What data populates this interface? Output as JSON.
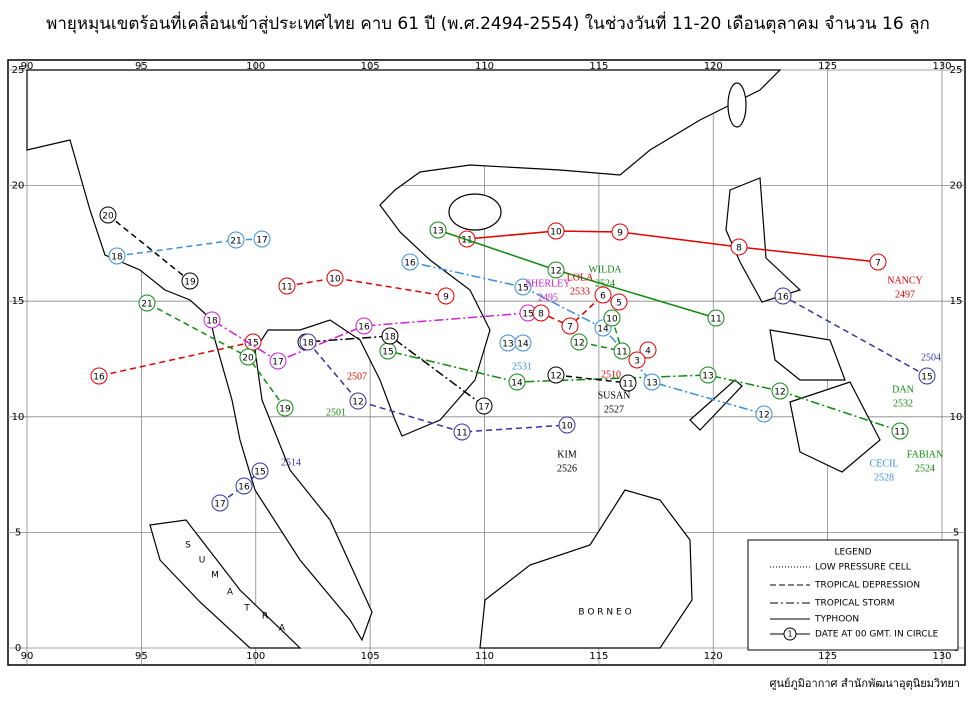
{
  "title": "พายุหมุนเขตร้อนที่เคลื่อนเข้าสู่ประเทศไทย คาบ 61 ปี (พ.ศ.2494-2554) ในช่วงวันที่ 11-20 เดือนตุลาคม จำนวน 16 ลูก",
  "map": {
    "lonlim": [
      90,
      130
    ],
    "latlim": [
      0,
      25
    ],
    "lonticks": [
      90,
      95,
      100,
      105,
      110,
      115,
      120,
      125,
      130
    ],
    "latticks": [
      0,
      5,
      10,
      15,
      20,
      25
    ]
  },
  "storms": [
    {
      "name": "NANCY",
      "year": "2497",
      "days": [
        7,
        8,
        9,
        10,
        11
      ]
    },
    {
      "name": "DAN",
      "year": "2532",
      "days": [
        13,
        12,
        11
      ]
    },
    {
      "name": "FABIAN",
      "year": "2524",
      "days": [
        11,
        12,
        13,
        14,
        15
      ]
    },
    {
      "name": "CECIL",
      "year": "2528",
      "days": [
        12,
        13,
        14,
        15,
        16
      ]
    },
    {
      "year": "2504",
      "days": [
        15,
        16
      ]
    },
    {
      "name": "KIM",
      "year": "2526",
      "days": [
        17,
        18,
        19
      ]
    },
    {
      "year": "2514",
      "days": [
        17,
        16,
        15
      ]
    },
    {
      "year": "2507",
      "days": [
        15,
        16
      ]
    },
    {
      "year": "2501",
      "days": [
        19,
        20,
        21
      ]
    },
    {
      "name": "SUSAN",
      "year": "2527",
      "days": [
        12,
        11
      ]
    },
    {
      "name": "SHERLEY",
      "year": "2495",
      "days": [
        15,
        16,
        17,
        18
      ]
    },
    {
      "name": "LOLA",
      "year": "2533",
      "days": [
        5,
        6,
        7,
        8
      ]
    },
    {
      "name": "WILDA",
      "year": "2524",
      "days": [
        10,
        11,
        12
      ]
    },
    {
      "year": "2510",
      "days": [
        4,
        3
      ]
    },
    {
      "year": "2531",
      "days": [
        13,
        14
      ]
    },
    {
      "days": [
        20,
        19
      ]
    },
    {
      "days": [
        18,
        21,
        17
      ]
    },
    {
      "days": [
        11,
        10,
        9
      ]
    },
    {
      "days": [
        18,
        12,
        11,
        10
      ]
    }
  ],
  "places": [
    "S",
    "U",
    "M",
    "A",
    "T",
    "R",
    "A",
    "B O R N E O"
  ],
  "legend": {
    "title": "LEGEND",
    "items": [
      "LOW  PRESSURE CELL",
      "TROPICAL DEPRESSION",
      "TROPICAL STORM",
      "TYPHOON",
      "DATE AT 00 GMT. IN CIRCLE"
    ],
    "sample_day": 1
  },
  "credit": "ศูนย์ภูมิอากาศ สำนักพัฒนาอุตุนิยมวิทยา"
}
